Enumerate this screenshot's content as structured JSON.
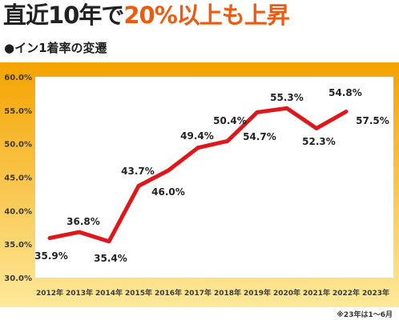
{
  "header": {
    "title_part1": "直近10年で",
    "title_part2": "20%以上も上昇",
    "subtitle": "●イン1着率の変遷"
  },
  "footnote": "※23年は1～6月",
  "colors": {
    "title_accent": "#ee5a0e",
    "line": "#e0161b",
    "panel_gradient_start": "#f4a300",
    "panel_gradient_end": "#fde99a",
    "plot_background": "#ffffff"
  },
  "chart_data": {
    "type": "line",
    "title": "",
    "xlabel": "",
    "ylabel": "",
    "categories": [
      "2012年",
      "2013年",
      "2014年",
      "2015年",
      "2016年",
      "2017年",
      "2018年",
      "2019年",
      "2020年",
      "2021年",
      "2022年",
      "2023年"
    ],
    "series": [
      {
        "values": [
          35.9,
          36.8,
          35.4,
          43.7,
          46.0,
          49.4,
          50.4,
          54.7,
          55.3,
          52.3,
          54.8,
          57.5
        ]
      }
    ],
    "data_labels": [
      "35.9%",
      "36.8%",
      "35.4%",
      "43.7%",
      "46.0%",
      "49.4%",
      "50.4%",
      "54.7%",
      "55.3%",
      "52.3%",
      "54.8%",
      "57.5%"
    ],
    "yticks": [
      60.0,
      55.0,
      50.0,
      45.0,
      40.0,
      35.0,
      30.0
    ],
    "ytick_labels": [
      "60.0%",
      "55.0%",
      "50.0%",
      "45.0%",
      "40.0%",
      "35.0%",
      "30.0%"
    ],
    "ylim": [
      30,
      60
    ],
    "grid": false,
    "legend": "none"
  }
}
